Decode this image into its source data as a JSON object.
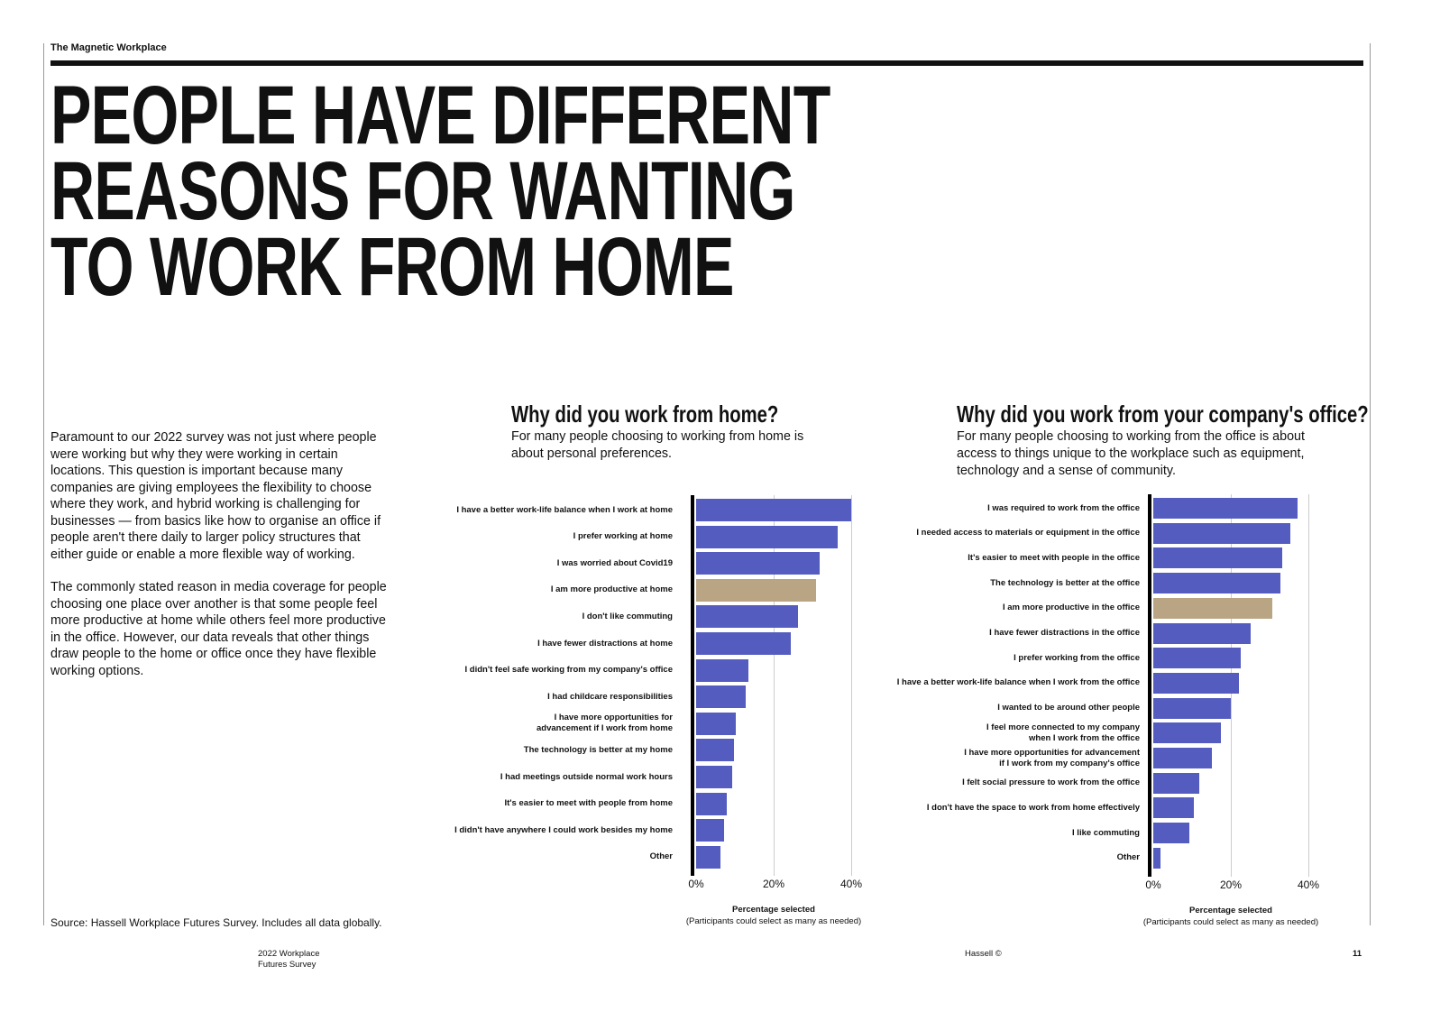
{
  "header": {
    "section": "The Magnetic Workplace"
  },
  "title": [
    "PEOPLE HAVE DIFFERENT",
    "REASONS FOR WANTING",
    "TO WORK FROM HOME"
  ],
  "body": [
    "Paramount to our 2022 survey was not just where people were working but why they were working in certain locations. This question is important because many companies are giving employees the flexibility to choose where they work, and hybrid working is challenging for businesses — from basics like how to organise an office if people aren't there daily to larger policy structures that either guide or enable a more flexible way of working.",
    "The commonly stated reason in media coverage for people choosing one place over another is that some people feel more productive at home while others feel more productive in the office. However, our data reveals that other things draw people to the home or office once they have flexible working options."
  ],
  "source": "Source: Hassell Workplace Futures Survey. Includes all data globally.",
  "footer": {
    "left1": "2022 Workplace",
    "left2": "Futures Survey",
    "center": "Hassell ©",
    "page": "11"
  },
  "colors": {
    "bar": "#545cbf",
    "highlight": "#b9a583"
  },
  "chart_data": [
    {
      "type": "bar",
      "orientation": "horizontal",
      "title": "Why did you work from home?",
      "subtitle": "For many people choosing to working from home is about personal preferences.",
      "xlabel": "Percentage selected",
      "xnote": "(Participants could select as many as needed)",
      "xlim": [
        0,
        40
      ],
      "xticks": [
        "0%",
        "20%",
        "40%"
      ],
      "highlight_index": 3,
      "categories": [
        "I have a better work-life balance when I work at home",
        "I prefer working at home",
        "I was worried about Covid19",
        "I am more productive at home",
        "I don't like commuting",
        "I have fewer distractions at home",
        "I didn't feel safe working from my company's office",
        "I had childcare responsibilities",
        "I have more opportunities for\nadvancement if I work from home",
        "The technology is better at my home",
        "I had meetings outside normal work hours",
        "It's easier to meet with people from home",
        "I didn't have anywhere I could work besides my home",
        "Other"
      ],
      "values": [
        40,
        36.5,
        31.8,
        30.9,
        26.3,
        24.4,
        13.6,
        12.8,
        10.3,
        9.8,
        9.4,
        8.0,
        7.2,
        6.3
      ]
    },
    {
      "type": "bar",
      "orientation": "horizontal",
      "title": "Why did you work from your company's office?",
      "subtitle": "For many people choosing to working from the office is about access to things unique to the workplace such as equipment, technology and a sense of community.",
      "xlabel": "Percentage selected",
      "xnote": "(Participants could select as many as needed)",
      "xlim": [
        0,
        40
      ],
      "xticks": [
        "0%",
        "20%",
        "40%"
      ],
      "highlight_index": 4,
      "categories": [
        "I was required to work from the office",
        "I needed access to materials or equipment in the office",
        "It's easier to meet with people in the office",
        "The technology is better at the office",
        "I am more productive in the office",
        "I have fewer distractions in the office",
        "I prefer working from the office",
        "I have a better work-life balance when I work from the office",
        "I wanted to be around other people",
        "I feel more connected to my company\nwhen I work from the office",
        "I have more opportunities for advancement\nif I work from my company's office",
        "I felt social pressure to work from the office",
        "I don't have the space to work from home effectively",
        "I like commuting",
        "Other"
      ],
      "values": [
        37.1,
        35.3,
        33.3,
        32.9,
        30.8,
        25.2,
        22.5,
        22.0,
        20.1,
        17.5,
        15.0,
        11.8,
        10.4,
        9.4,
        1.9
      ]
    }
  ]
}
